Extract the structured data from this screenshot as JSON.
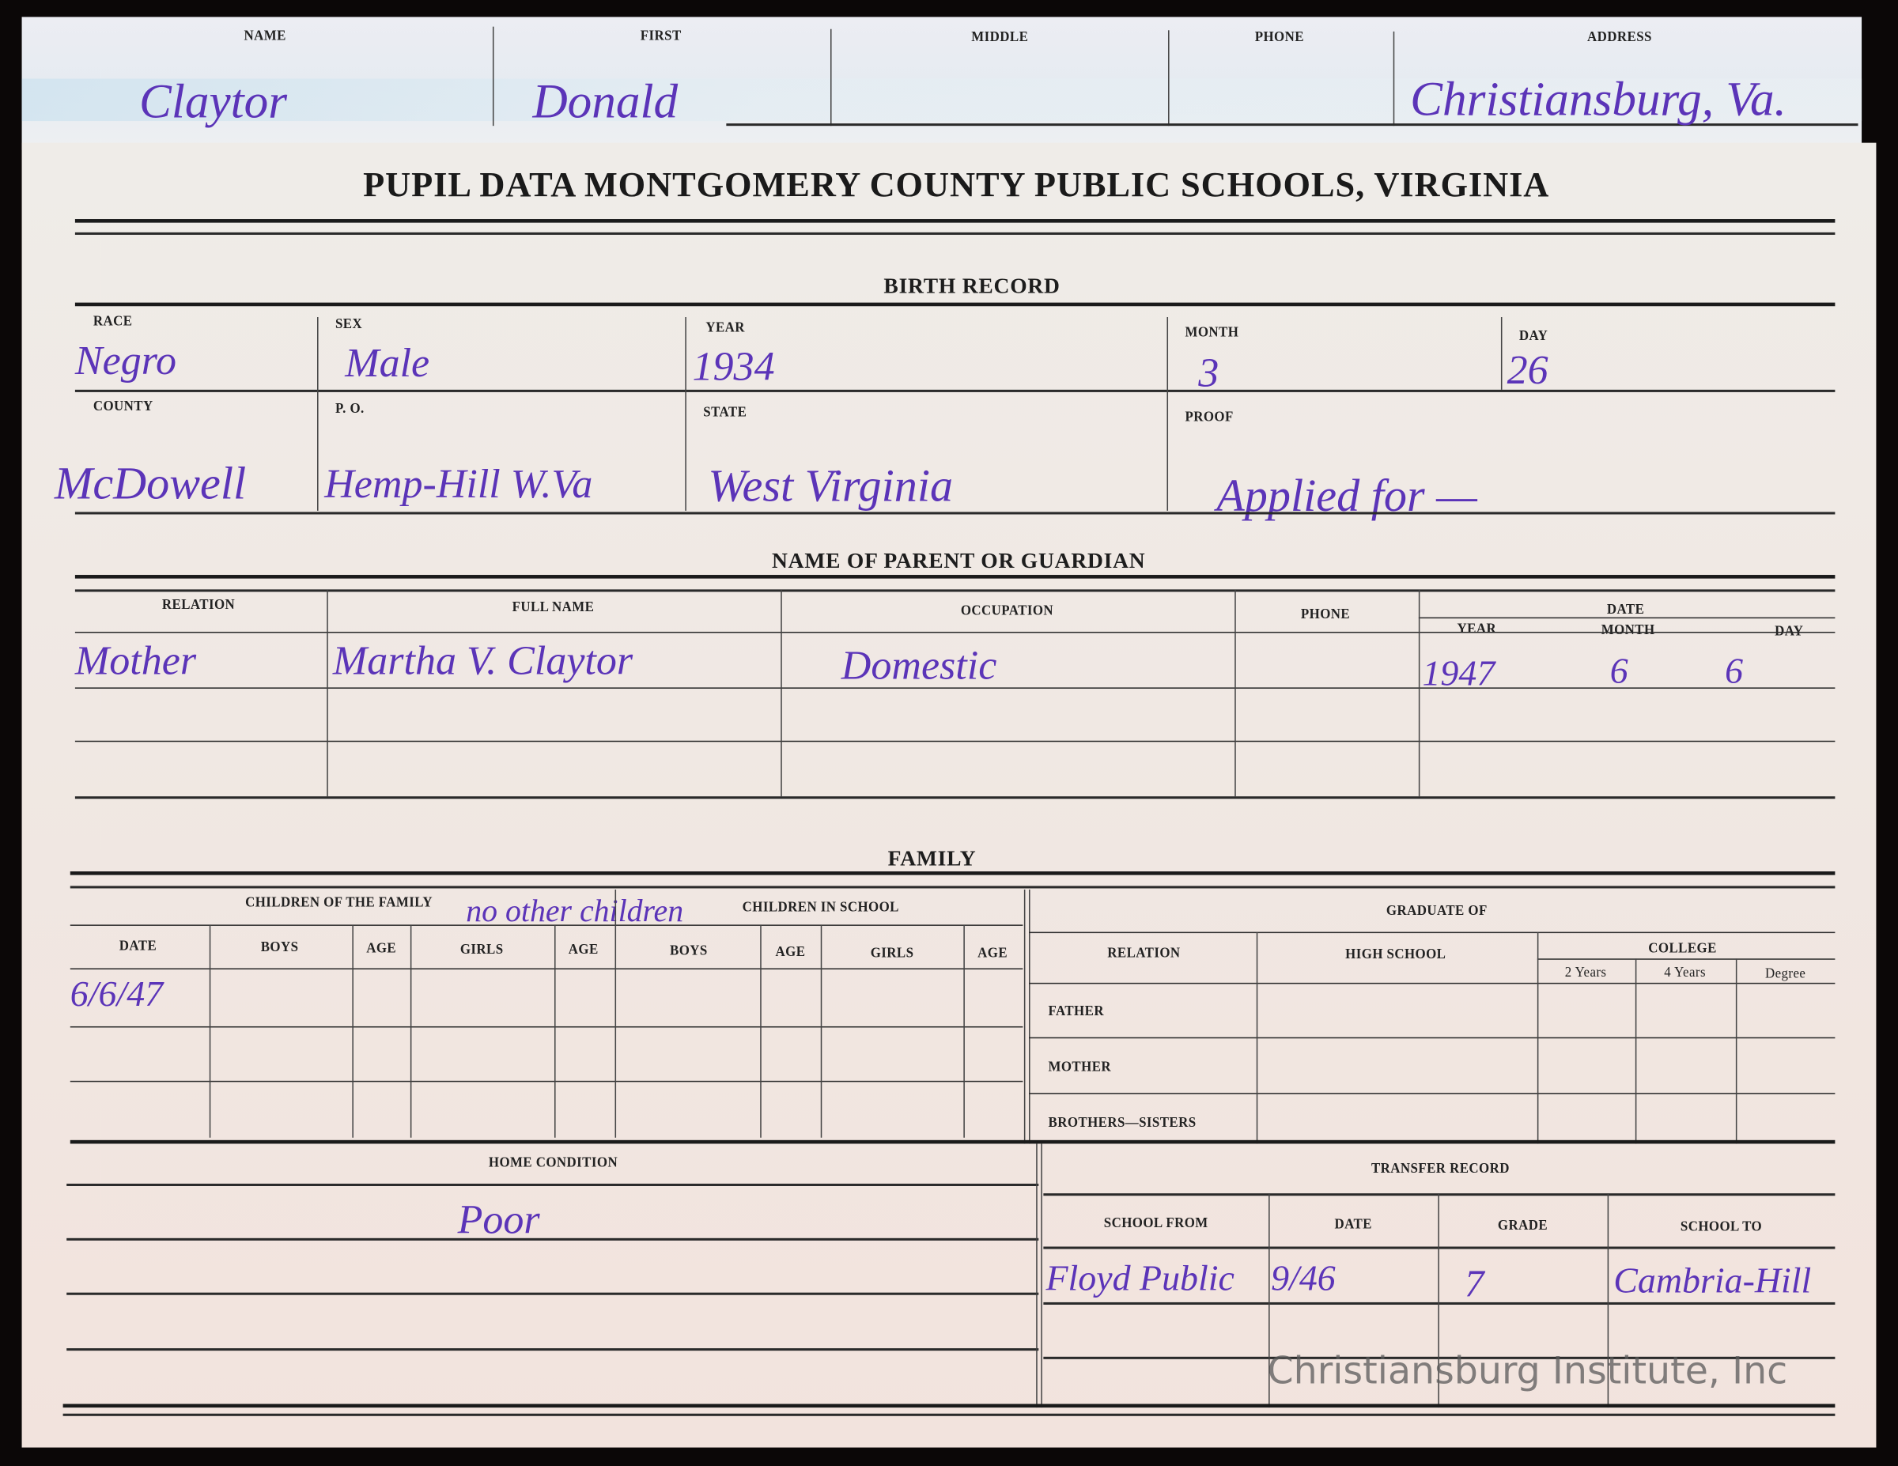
{
  "top_card": {
    "headers": [
      "NAME",
      "FIRST",
      "MIDDLE",
      "PHONE",
      "ADDRESS"
    ],
    "values": {
      "name": "Claytor",
      "first": "Donald",
      "middle": "",
      "phone": "",
      "address": "Christiansburg, Va."
    }
  },
  "title": "PUPIL DATA MONTGOMERY COUNTY PUBLIC SCHOOLS, VIRGINIA",
  "birth_record": {
    "heading": "BIRTH RECORD",
    "labels": {
      "race": "RACE",
      "sex": "SEX",
      "year": "YEAR",
      "month": "MONTH",
      "day": "DAY",
      "county": "COUNTY",
      "po": "P. O.",
      "state": "STATE",
      "proof": "PROOF"
    },
    "values": {
      "race": "Negro",
      "sex": "Male",
      "year": "1934",
      "month": "3",
      "day": "26",
      "county": "McDowell",
      "po": "Hemp-Hill W.Va",
      "state": "West Virginia",
      "proof": "Applied for —"
    }
  },
  "parent": {
    "heading": "NAME OF PARENT OR GUARDIAN",
    "headers": {
      "relation": "RELATION",
      "full_name": "FULL NAME",
      "occupation": "OCCUPATION",
      "phone": "PHONE",
      "date": "DATE",
      "year": "YEAR",
      "month": "MONTH",
      "day": "DAY"
    },
    "values": {
      "relation": "Mother",
      "full_name": "Martha V. Claytor",
      "occupation": "Domestic",
      "phone": "",
      "year": "1947",
      "month": "6",
      "day": "6"
    }
  },
  "family": {
    "heading": "FAMILY",
    "children_of_family": "CHILDREN OF THE FAMILY",
    "children_in_school": "CHILDREN IN SCHOOL",
    "columns": [
      "DATE",
      "BOYS",
      "AGE",
      "GIRLS",
      "AGE",
      "BOYS",
      "AGE",
      "GIRLS",
      "AGE"
    ],
    "note": "no other children",
    "date_value": "6/6/47",
    "graduate_of": "GRADUATE OF",
    "grad_headers": {
      "relation": "RELATION",
      "high_school": "HIGH SCHOOL",
      "college": "COLLEGE",
      "two_years": "2 Years",
      "four_years": "4 Years",
      "degree": "Degree"
    },
    "grad_rows": [
      "FATHER",
      "MOTHER",
      "BROTHERS—SISTERS"
    ]
  },
  "home_condition": {
    "heading": "HOME CONDITION",
    "value": "Poor"
  },
  "transfer": {
    "heading": "TRANSFER RECORD",
    "headers": {
      "school_from": "SCHOOL FROM",
      "date": "DATE",
      "grade": "GRADE",
      "school_to": "SCHOOL TO"
    },
    "values": {
      "school_from": "Floyd Public",
      "date": "9/46",
      "grade": "7",
      "school_to": "Cambria-Hill"
    }
  },
  "watermark": "Christiansburg Institute, Inc",
  "colors": {
    "ink": "#5b34b8",
    "paper": "#f0e8e3",
    "background": "#0b0707"
  }
}
